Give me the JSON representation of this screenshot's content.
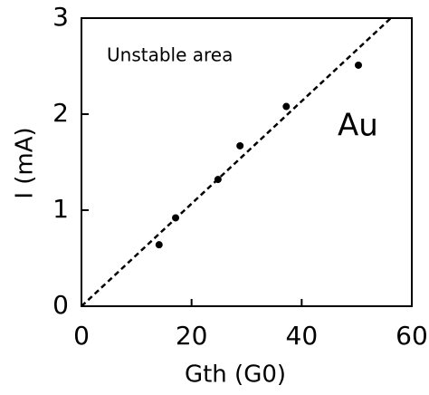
{
  "chart_data": {
    "type": "scatter",
    "xlabel": "Gth (G0)",
    "ylabel": "I (mA)",
    "annotations": [
      "Unstable area",
      "Au"
    ],
    "series": [
      {
        "color": "#000000",
        "x": [
          14.1,
          17.1,
          24.8,
          28.8,
          37.2,
          50.3
        ],
        "values": [
          0.64,
          0.92,
          1.32,
          1.67,
          2.08,
          2.51
        ]
      }
    ],
    "lines": [
      {
        "style": "dashed",
        "color": "#000000",
        "x": [
          0,
          56.2
        ],
        "values": [
          0,
          3
        ]
      }
    ],
    "xlim": [
      0,
      60
    ],
    "ylim": [
      0,
      3
    ],
    "xticks": [
      0,
      20,
      40,
      60
    ],
    "yticks": [
      0,
      1,
      2,
      3
    ]
  }
}
